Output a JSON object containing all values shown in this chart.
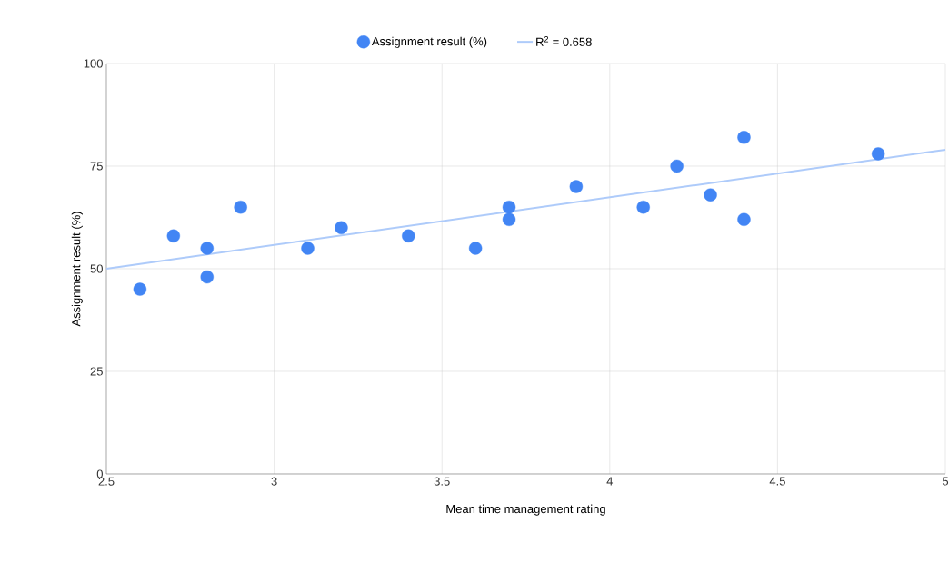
{
  "chart_data": {
    "type": "scatter",
    "xlabel": "Mean time management rating",
    "ylabel": "Assignment result (%)",
    "xlim": [
      2.5,
      5
    ],
    "xticks": [
      2.5,
      3,
      3.5,
      4,
      4.5,
      5
    ],
    "ylim": [
      0,
      100
    ],
    "yticks": [
      0,
      25,
      50,
      75,
      100
    ],
    "grid": true,
    "legend": "top",
    "series": [
      {
        "name": "Assignment result (%)",
        "color": "#4285f4",
        "marker": "circle",
        "x": [
          2.6,
          2.7,
          2.8,
          2.8,
          2.9,
          3.1,
          3.2,
          3.4,
          3.6,
          3.7,
          3.7,
          3.9,
          4.1,
          4.2,
          4.3,
          4.4,
          4.4,
          4.8
        ],
        "values": [
          45,
          58,
          55,
          48,
          65,
          55,
          60,
          58,
          55,
          65,
          62,
          70,
          65,
          75,
          68,
          82,
          62,
          78
        ]
      },
      {
        "name": "R$^{2}$ = 0.658",
        "color": "#aecbfa",
        "type": "line",
        "line_style": "solid",
        "x": [
          2.5,
          5
        ],
        "values": [
          50,
          79
        ]
      }
    ]
  }
}
